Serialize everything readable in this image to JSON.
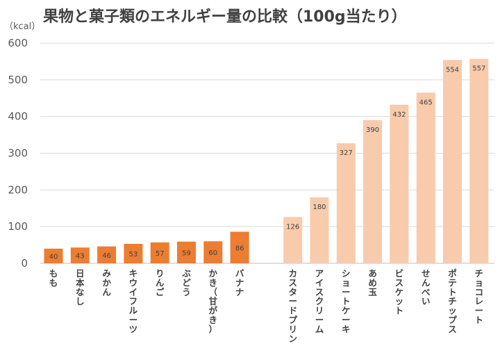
{
  "chart_data": {
    "type": "bar",
    "title": "果物と菓子類のエネルギー量の比較（100g当たり）",
    "unit_label": "（kcal）",
    "ylim": [
      0,
      600
    ],
    "yticks": [
      0,
      100,
      200,
      300,
      400,
      500,
      600
    ],
    "grid": true,
    "groups": [
      {
        "color": "#ED7D31",
        "categories": [
          "もも",
          "日本なし",
          "みかん",
          "キウイフルーツ",
          "りんご",
          "ぶどう",
          "かき（甘がき）",
          "バナナ"
        ],
        "values": [
          40,
          43,
          46,
          53,
          57,
          59,
          60,
          86
        ]
      },
      {
        "color": "#F8CBAD",
        "categories": [
          "カスタードプリン",
          "アイスクリーム",
          "ショートケーキ",
          "あめ玉",
          "ビスケット",
          "せんべい",
          "ポテトチップス",
          "チョコレート"
        ],
        "values": [
          126,
          180,
          327,
          390,
          432,
          465,
          554,
          557
        ]
      }
    ]
  }
}
